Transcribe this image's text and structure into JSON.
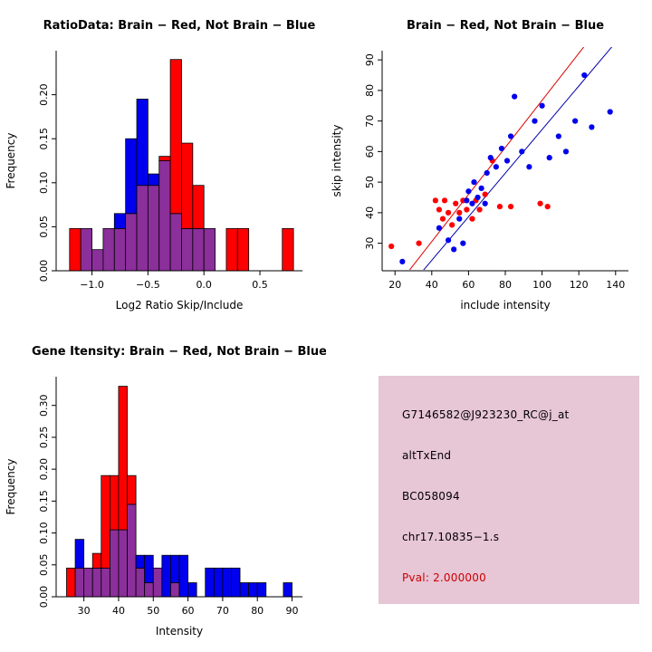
{
  "colors": {
    "background": "#ffffff",
    "red": "#ff0000",
    "blue": "#0000ee",
    "purple": "#8b2f9b",
    "red_line": "#dd0000",
    "blue_line": "#0000aa",
    "box_bg": "#e7c6d6",
    "pval_red": "#cc0000",
    "axis": "#000000"
  },
  "chart_data": [
    {
      "id": "ratio-hist",
      "type": "bar",
      "subtype": "overlaid-histogram",
      "title": "RatioData: Brain − Red, Not Brain − Blue",
      "xlabel": "Log2 Ratio Skip/Include",
      "ylabel": "Frequency",
      "xlim": [
        -1.32,
        0.88
      ],
      "ylim": [
        0,
        0.25
      ],
      "xticks": [
        -1.0,
        -0.5,
        0.0,
        0.5
      ],
      "xtick_labels": [
        "−1.0",
        "−0.5",
        "0.0",
        "0.5"
      ],
      "yticks": [
        0,
        0.05,
        0.1,
        0.15,
        0.2
      ],
      "ytick_labels": [
        "0.00",
        "0.05",
        "0.10",
        "0.15",
        "0.20"
      ],
      "bin_width": 0.1,
      "bins": [
        {
          "x": -1.2,
          "red": 0.048,
          "blue": 0
        },
        {
          "x": -1.1,
          "red": 0.048,
          "blue": 0.048
        },
        {
          "x": -1.0,
          "red": 0.024,
          "blue": 0.024
        },
        {
          "x": -0.9,
          "red": 0.048,
          "blue": 0.048
        },
        {
          "x": -0.8,
          "red": 0.048,
          "blue": 0.065
        },
        {
          "x": -0.7,
          "red": 0.065,
          "blue": 0.15
        },
        {
          "x": -0.6,
          "red": 0.097,
          "blue": 0.195
        },
        {
          "x": -0.5,
          "red": 0.097,
          "blue": 0.11
        },
        {
          "x": -0.4,
          "red": 0.13,
          "blue": 0.125
        },
        {
          "x": -0.3,
          "red": 0.24,
          "blue": 0.065
        },
        {
          "x": -0.2,
          "red": 0.145,
          "blue": 0.048
        },
        {
          "x": -0.1,
          "red": 0.097,
          "blue": 0.048
        },
        {
          "x": 0.0,
          "red": 0.048,
          "blue": 0.048
        },
        {
          "x": 0.2,
          "red": 0.048,
          "blue": 0
        },
        {
          "x": 0.3,
          "red": 0.048,
          "blue": 0
        },
        {
          "x": 0.7,
          "red": 0.048,
          "blue": 0
        }
      ]
    },
    {
      "id": "intensity-scatter",
      "type": "scatter",
      "title": "Brain − Red, Not Brain − Blue",
      "xlabel": "include intensity",
      "ylabel": "skip intensity",
      "xlim": [
        13,
        147
      ],
      "ylim": [
        21,
        93
      ],
      "xticks": [
        20,
        40,
        60,
        80,
        100,
        120,
        140
      ],
      "xtick_labels": [
        "20",
        "40",
        "60",
        "80",
        "100",
        "120",
        "140"
      ],
      "yticks": [
        30,
        40,
        50,
        60,
        70,
        80,
        90
      ],
      "ytick_labels": [
        "30",
        "40",
        "50",
        "60",
        "70",
        "80",
        "90"
      ],
      "red_points": [
        [
          18,
          29
        ],
        [
          33,
          30
        ],
        [
          42,
          44
        ],
        [
          44,
          41
        ],
        [
          46,
          38
        ],
        [
          47,
          44
        ],
        [
          49,
          40
        ],
        [
          51,
          36
        ],
        [
          53,
          43
        ],
        [
          55,
          40
        ],
        [
          57,
          44
        ],
        [
          59,
          41
        ],
        [
          62,
          38
        ],
        [
          64,
          44
        ],
        [
          66,
          41
        ],
        [
          69,
          46
        ],
        [
          73,
          57
        ],
        [
          77,
          42
        ],
        [
          83,
          42
        ],
        [
          99,
          43
        ],
        [
          103,
          42
        ]
      ],
      "blue_points": [
        [
          24,
          24
        ],
        [
          44,
          35
        ],
        [
          49,
          31
        ],
        [
          52,
          28
        ],
        [
          55,
          38
        ],
        [
          57,
          30
        ],
        [
          59,
          44
        ],
        [
          60,
          47
        ],
        [
          62,
          43
        ],
        [
          63,
          50
        ],
        [
          65,
          45
        ],
        [
          67,
          48
        ],
        [
          69,
          43
        ],
        [
          70,
          53
        ],
        [
          72,
          58
        ],
        [
          75,
          55
        ],
        [
          78,
          61
        ],
        [
          81,
          57
        ],
        [
          83,
          65
        ],
        [
          85,
          78
        ],
        [
          89,
          60
        ],
        [
          93,
          55
        ],
        [
          96,
          70
        ],
        [
          100,
          75
        ],
        [
          104,
          58
        ],
        [
          109,
          65
        ],
        [
          113,
          60
        ],
        [
          118,
          70
        ],
        [
          123,
          85
        ],
        [
          127,
          68
        ],
        [
          137,
          73
        ]
      ],
      "red_line": [
        [
          25,
          19
        ],
        [
          125,
          96
        ]
      ],
      "blue_line": [
        [
          31,
          18
        ],
        [
          139,
          95
        ]
      ]
    },
    {
      "id": "gene-hist",
      "type": "bar",
      "subtype": "overlaid-histogram",
      "title": "Gene Itensity: Brain − Red, Not Brain − Blue",
      "xlabel": "Intensity",
      "ylabel": "Frequency",
      "xlim": [
        22,
        93
      ],
      "ylim": [
        0,
        0.345
      ],
      "xticks": [
        30,
        40,
        50,
        60,
        70,
        80,
        90
      ],
      "xtick_labels": [
        "30",
        "40",
        "50",
        "60",
        "70",
        "80",
        "90"
      ],
      "yticks": [
        0,
        0.05,
        0.1,
        0.15,
        0.2,
        0.25,
        0.3
      ],
      "ytick_labels": [
        "0.00",
        "0.05",
        "0.10",
        "0.15",
        "0.20",
        "0.25",
        "0.30"
      ],
      "bin_width": 2.5,
      "bins": [
        {
          "x": 25.0,
          "red": 0.045,
          "blue": 0
        },
        {
          "x": 27.5,
          "red": 0.045,
          "blue": 0.09
        },
        {
          "x": 30.0,
          "red": 0.045,
          "blue": 0.045
        },
        {
          "x": 32.5,
          "red": 0.068,
          "blue": 0.045
        },
        {
          "x": 35.0,
          "red": 0.19,
          "blue": 0.045
        },
        {
          "x": 37.5,
          "red": 0.19,
          "blue": 0.105
        },
        {
          "x": 40.0,
          "red": 0.33,
          "blue": 0.105
        },
        {
          "x": 42.5,
          "red": 0.19,
          "blue": 0.145
        },
        {
          "x": 45.0,
          "red": 0.045,
          "blue": 0.065
        },
        {
          "x": 47.5,
          "red": 0.022,
          "blue": 0.065
        },
        {
          "x": 50.0,
          "red": 0.045,
          "blue": 0.045
        },
        {
          "x": 52.5,
          "red": 0,
          "blue": 0.065
        },
        {
          "x": 55.0,
          "red": 0.022,
          "blue": 0.065
        },
        {
          "x": 57.5,
          "red": 0,
          "blue": 0.065
        },
        {
          "x": 60.0,
          "red": 0,
          "blue": 0.022
        },
        {
          "x": 65.0,
          "red": 0,
          "blue": 0.045
        },
        {
          "x": 67.5,
          "red": 0,
          "blue": 0.045
        },
        {
          "x": 70.0,
          "red": 0,
          "blue": 0.045
        },
        {
          "x": 72.5,
          "red": 0,
          "blue": 0.045
        },
        {
          "x": 75.0,
          "red": 0,
          "blue": 0.022
        },
        {
          "x": 77.5,
          "red": 0,
          "blue": 0.022
        },
        {
          "x": 80.0,
          "red": 0,
          "blue": 0.022
        },
        {
          "x": 87.5,
          "red": 0,
          "blue": 0.022
        }
      ]
    }
  ],
  "info_box": {
    "line1": "G7146582@J923230_RC@j_at",
    "line2": "altTxEnd",
    "line3": "BC058094",
    "line4": "chr17.10835−1.s",
    "pval": "Pval: 2.000000"
  }
}
